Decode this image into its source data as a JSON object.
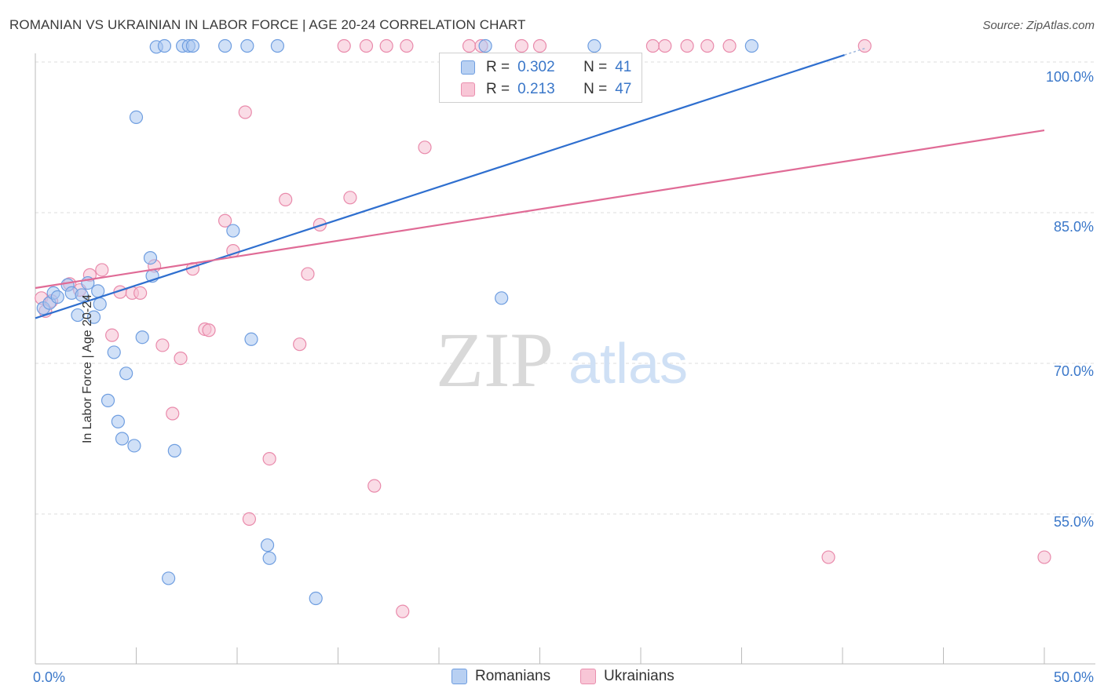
{
  "title": "ROMANIAN VS UKRAINIAN IN LABOR FORCE | AGE 20-24 CORRELATION CHART",
  "source": "Source: ZipAtlas.com",
  "watermark": {
    "zip": "ZIP",
    "atlas": "atlas"
  },
  "stats": {
    "romanians": {
      "r_label": "R =",
      "r_value": "0.302",
      "n_label": "N =",
      "n_value": "41"
    },
    "ukrainians": {
      "r_label": "R =",
      "r_value": "0.213",
      "n_label": "N =",
      "n_value": "47"
    }
  },
  "legend": {
    "romanians": "Romanians",
    "ukrainians": "Ukrainians"
  },
  "colors": {
    "blue_fill": "#a9c6f0",
    "blue_stroke": "#6f9ee0",
    "blue_line": "#2f6fcf",
    "pink_fill": "#f6bfd1",
    "pink_stroke": "#e98aab",
    "pink_line": "#e06b96",
    "axis_label": "#3a77c9",
    "grid": "#dddddd"
  },
  "chart_data": {
    "type": "scatter",
    "title": "ROMANIAN VS UKRAINIAN IN LABOR FORCE | AGE 20-24 CORRELATION CHART",
    "xlabel": "",
    "ylabel": "In Labor Force | Age 20-24",
    "xlim": [
      0,
      50
    ],
    "ylim": [
      40,
      102
    ],
    "x_tick_labels": [
      "0.0%",
      "50.0%"
    ],
    "y_ticks": [
      55,
      70,
      85,
      100
    ],
    "y_tick_labels": [
      "55.0%",
      "70.0%",
      "85.0%",
      "100.0%"
    ],
    "grid": true,
    "legend_position": "bottom-center",
    "series": [
      {
        "name": "Romanians",
        "r": 0.302,
        "n": 41,
        "trend": {
          "x0": 0,
          "y0": 74.5,
          "x1": 40.1,
          "y1": 100.7,
          "dash_to_x": 41.1
        },
        "points": [
          [
            0.4,
            75.5
          ],
          [
            0.7,
            76.0
          ],
          [
            0.9,
            77.0
          ],
          [
            1.1,
            76.6
          ],
          [
            1.6,
            77.8
          ],
          [
            1.8,
            77.0
          ],
          [
            2.1,
            74.8
          ],
          [
            2.3,
            76.8
          ],
          [
            2.6,
            78.0
          ],
          [
            2.9,
            74.6
          ],
          [
            3.1,
            77.2
          ],
          [
            3.2,
            75.9
          ],
          [
            3.6,
            66.3
          ],
          [
            3.9,
            71.1
          ],
          [
            4.1,
            64.2
          ],
          [
            4.3,
            62.5
          ],
          [
            4.5,
            69.0
          ],
          [
            4.9,
            61.8
          ],
          [
            5.0,
            94.5
          ],
          [
            5.3,
            72.6
          ],
          [
            5.7,
            80.5
          ],
          [
            5.8,
            78.7
          ],
          [
            6.0,
            101.5
          ],
          [
            6.4,
            101.6
          ],
          [
            6.6,
            48.6
          ],
          [
            6.9,
            61.3
          ],
          [
            7.3,
            101.6
          ],
          [
            7.6,
            101.6
          ],
          [
            7.8,
            101.6
          ],
          [
            9.4,
            101.6
          ],
          [
            9.8,
            83.2
          ],
          [
            10.5,
            101.6
          ],
          [
            10.7,
            72.4
          ],
          [
            11.5,
            51.9
          ],
          [
            11.6,
            50.6
          ],
          [
            12.0,
            101.6
          ],
          [
            13.9,
            46.6
          ],
          [
            22.3,
            101.6
          ],
          [
            23.1,
            76.5
          ],
          [
            27.7,
            101.6
          ],
          [
            35.5,
            101.6
          ]
        ]
      },
      {
        "name": "Ukrainians",
        "r": 0.213,
        "n": 47,
        "trend": {
          "x0": 0,
          "y0": 77.5,
          "x1": 50,
          "y1": 93.2
        },
        "points": [
          [
            0.3,
            76.5
          ],
          [
            0.5,
            75.2
          ],
          [
            0.8,
            76.2
          ],
          [
            1.7,
            77.9
          ],
          [
            2.2,
            77.3
          ],
          [
            2.7,
            78.8
          ],
          [
            3.3,
            79.3
          ],
          [
            3.8,
            72.8
          ],
          [
            4.2,
            77.1
          ],
          [
            4.8,
            77.0
          ],
          [
            5.2,
            77.0
          ],
          [
            5.9,
            79.7
          ],
          [
            6.3,
            71.8
          ],
          [
            6.8,
            65.0
          ],
          [
            7.2,
            70.5
          ],
          [
            7.8,
            79.4
          ],
          [
            8.4,
            73.4
          ],
          [
            8.6,
            73.3
          ],
          [
            9.4,
            84.2
          ],
          [
            9.8,
            81.2
          ],
          [
            10.4,
            95.0
          ],
          [
            10.6,
            54.5
          ],
          [
            11.6,
            60.5
          ],
          [
            12.4,
            86.3
          ],
          [
            13.1,
            71.9
          ],
          [
            13.5,
            78.9
          ],
          [
            14.1,
            83.8
          ],
          [
            15.3,
            101.6
          ],
          [
            15.6,
            86.5
          ],
          [
            16.4,
            101.6
          ],
          [
            16.8,
            57.8
          ],
          [
            17.4,
            101.6
          ],
          [
            18.4,
            101.6
          ],
          [
            18.2,
            45.3
          ],
          [
            19.3,
            91.5
          ],
          [
            21.5,
            101.6
          ],
          [
            22.1,
            101.6
          ],
          [
            24.1,
            101.6
          ],
          [
            25.0,
            101.6
          ],
          [
            30.6,
            101.6
          ],
          [
            31.2,
            101.6
          ],
          [
            32.3,
            101.6
          ],
          [
            33.3,
            101.6
          ],
          [
            34.4,
            101.6
          ],
          [
            39.3,
            50.7
          ],
          [
            41.1,
            101.6
          ],
          [
            50.0,
            50.7
          ]
        ]
      }
    ]
  }
}
